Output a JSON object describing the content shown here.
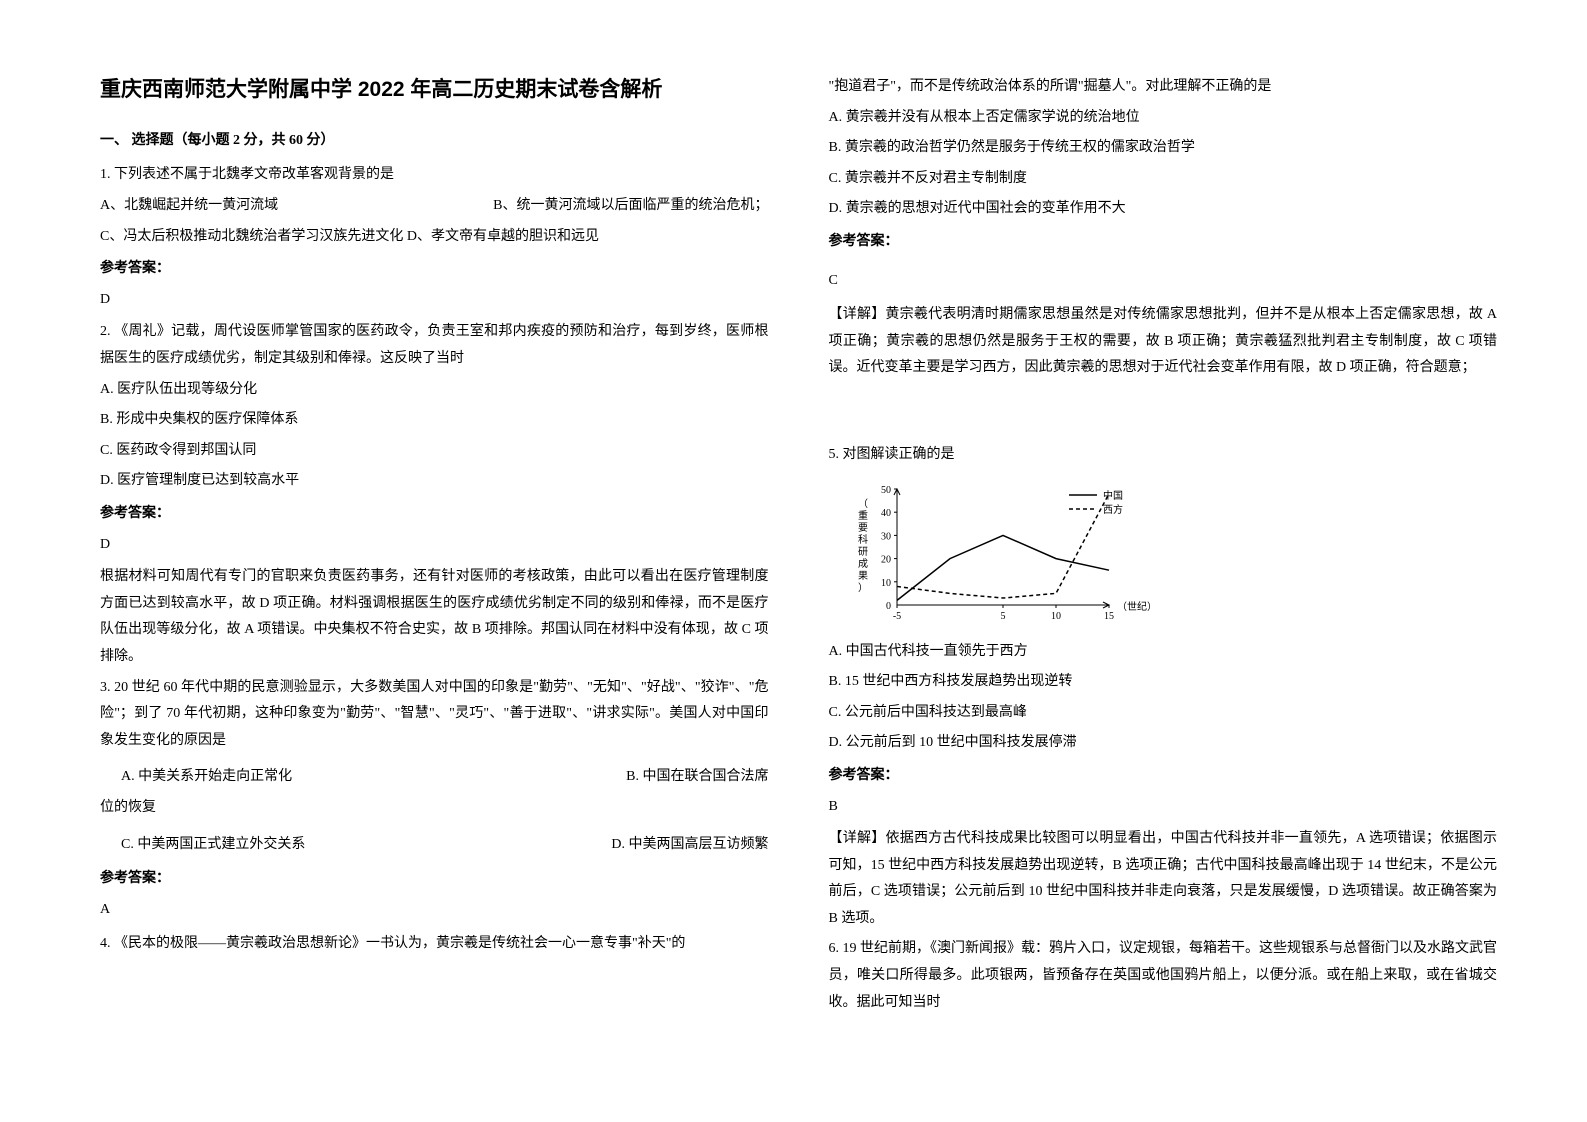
{
  "title": "重庆西南师范大学附属中学 2022 年高二历史期末试卷含解析",
  "section1": "一、 选择题（每小题 2 分，共 60 分）",
  "q1": {
    "stem": "1. 下列表述不属于北魏孝文帝改革客观背景的是",
    "optA": "A、北魏崛起并统一黄河流域",
    "optB": "B、统一黄河流域以后面临严重的统治危机；",
    "optC": "C、冯太后积极推动北魏统治者学习汉族先进文化 D、孝文帝有卓越的胆识和远见",
    "answerLabel": "参考答案：",
    "answer": "D"
  },
  "q2": {
    "stem": "2. 《周礼》记载，周代设医师掌管国家的医药政令，负责王室和邦内疾疫的预防和治疗，每到岁终，医师根据医生的医疗成绩优劣，制定其级别和俸禄。这反映了当时",
    "optA": "A. 医疗队伍出现等级分化",
    "optB": "B. 形成中央集权的医疗保障体系",
    "optC": "C. 医药政令得到邦国认同",
    "optD": "D. 医疗管理制度已达到较高水平",
    "answerLabel": "参考答案：",
    "answer": "D",
    "explain": "根据材料可知周代有专门的官职来负责医药事务，还有针对医师的考核政策，由此可以看出在医疗管理制度方面已达到较高水平，故 D 项正确。材料强调根据医生的医疗成绩优劣制定不同的级别和俸禄，而不是医疗队伍出现等级分化，故 A 项错误。中央集权不符合史实，故 B 项排除。邦国认同在材料中没有体现，故 C 项排除。"
  },
  "q3": {
    "stem": "3. 20 世纪 60 年代中期的民意测验显示，大多数美国人对中国的印象是\"勤劳\"、\"无知\"、\"好战\"、\"狡诈\"、\"危险\"；到了 70 年代初期，这种印象变为\"勤劳\"、\"智慧\"、\"灵巧\"、\"善于进取\"、\"讲求实际\"。美国人对中国印象发生变化的原因是",
    "optA": "A. 中美关系开始走向正常化",
    "optB": "B.  中国在联合国合法席",
    "optB2": "位的恢复",
    "optC": "C. 中美两国正式建立外交关系",
    "optD": "D. 中美两国高层互访频繁",
    "answerLabel": "参考答案：",
    "answer": "A"
  },
  "q4": {
    "stem1": "4. 《民本的极限——黄宗羲政治思想新论》一书认为，黄宗羲是传统社会一心一意专事\"补天\"的",
    "stem2": "\"抱道君子\"，而不是传统政治体系的所谓\"掘墓人\"。对此理解不正确的是",
    "optA": "A. 黄宗羲并没有从根本上否定儒家学说的统治地位",
    "optB": "B. 黄宗羲的政治哲学仍然是服务于传统王权的儒家政治哲学",
    "optC": "C. 黄宗羲并不反对君主专制制度",
    "optD": "D. 黄宗羲的思想对近代中国社会的变革作用不大",
    "answerLabel": "参考答案：",
    "answer": "C",
    "explain": "【详解】黄宗羲代表明清时期儒家思想虽然是对传统儒家思想批判，但并不是从根本上否定儒家思想，故 A 项正确；黄宗羲的思想仍然是服务于王权的需要，故 B 项正确；黄宗羲猛烈批判君主专制制度，故 C 项错误。近代变革主要是学习西方，因此黄宗羲的思想对于近代社会变革作用有限，故 D 项正确，符合题意；"
  },
  "q5": {
    "stem": "5. 对图解读正确的是",
    "chart": {
      "type": "line",
      "ylabel": "（重要科研成果）",
      "xlabel": "（世纪）",
      "ylim": [
        0,
        50
      ],
      "ytick_step": 10,
      "xticks": [
        -5,
        0,
        5,
        10,
        15
      ],
      "legend": {
        "china": "中国",
        "west": "西方"
      },
      "series_china": [
        [
          -5,
          2
        ],
        [
          0,
          20
        ],
        [
          5,
          30
        ],
        [
          10,
          20
        ],
        [
          15,
          15
        ]
      ],
      "series_west": [
        [
          -5,
          8
        ],
        [
          0,
          5
        ],
        [
          5,
          3
        ],
        [
          10,
          5
        ],
        [
          15,
          48
        ]
      ],
      "china_color": "#000000",
      "west_color": "#000000",
      "china_dash": "none",
      "west_dash": "4,3",
      "background_color": "#ffffff",
      "axis_color": "#000000",
      "label_fontsize": 10
    },
    "optA": "A. 中国古代科技一直领先于西方",
    "optB": "B. 15 世纪中西方科技发展趋势出现逆转",
    "optC": "C. 公元前后中国科技达到最高峰",
    "optD": "D. 公元前后到 10 世纪中国科技发展停滞",
    "answerLabel": "参考答案：",
    "answer": "B",
    "explain": "【详解】依据西方古代科技成果比较图可以明显看出，中国古代科技并非一直领先，A 选项错误；依据图示可知，15 世纪中西方科技发展趋势出现逆转，B 选项正确；古代中国科技最高峰出现于 14 世纪末，不是公元前后，C 选项错误；公元前后到 10 世纪中国科技并非走向衰落，只是发展缓慢，D 选项错误。故正确答案为 B 选项。"
  },
  "q6": {
    "stem": "6. 19 世纪前期，《澳门新闻报》载：鸦片入口，议定规银，每箱若干。这些规银系与总督衙门以及水路文武官员，唯关口所得最多。此项银两，皆预备存在英国或他国鸦片船上，以便分派。或在船上来取，或在省城交收。据此可知当时"
  }
}
